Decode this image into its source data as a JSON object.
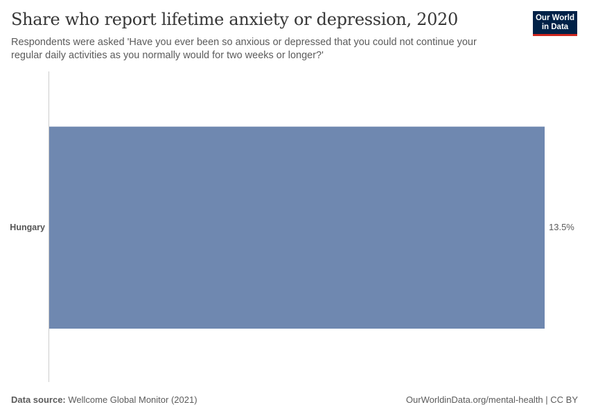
{
  "header": {
    "title": "Share who report lifetime anxiety or depression, 2020",
    "subtitle": "Respondents were asked 'Have you ever been so anxious or depressed that you could not continue your regular daily activities as you normally would for two weeks or longer?'"
  },
  "logo": {
    "line1": "Our World",
    "line2": "in Data",
    "bg_color": "#002147",
    "accent_color": "#ce261e"
  },
  "footer": {
    "source_label": "Data source:",
    "source_text": " Wellcome Global Monitor (2021)",
    "attribution": "OurWorldinData.org/mental-health | CC BY"
  },
  "chart_data": {
    "type": "bar",
    "orientation": "horizontal",
    "title": "Share who report lifetime anxiety or depression, 2020",
    "subtitle": "Respondents were asked 'Have you ever been so anxious or depressed that you could not continue your regular daily activities as you normally would for two weeks or longer?'",
    "categories": [
      "Hungary"
    ],
    "values": [
      13.5
    ],
    "value_labels": [
      "13.5%"
    ],
    "unit": "%",
    "xlabel": "",
    "ylabel": "",
    "xlim": [
      0,
      13.5
    ],
    "grid": false,
    "legend": "none",
    "bar_color": "#6f88b0"
  }
}
